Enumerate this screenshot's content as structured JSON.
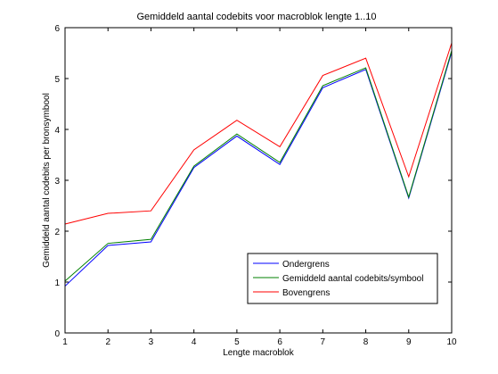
{
  "chart_data": {
    "type": "line",
    "title": "Gemiddeld aantal codebits voor macroblok lengte 1..10",
    "xlabel": "Lengte macroblok",
    "ylabel": "Gemiddeld aantal codebits per bronsymbool",
    "xlim": [
      1,
      10
    ],
    "ylim": [
      0,
      6
    ],
    "xticks": [
      1,
      2,
      3,
      4,
      5,
      6,
      7,
      8,
      9,
      10
    ],
    "yticks": [
      0,
      1,
      2,
      3,
      4,
      5,
      6
    ],
    "x": [
      1,
      2,
      3,
      4,
      5,
      6,
      7,
      8,
      9,
      10
    ],
    "series": [
      {
        "name": "Ondergrens",
        "color": "#0000ff",
        "values": [
          0.92,
          1.72,
          1.79,
          3.25,
          3.87,
          3.31,
          4.82,
          5.18,
          2.65,
          5.52
        ]
      },
      {
        "name": "Gemiddeld aantal codebits/symbool",
        "color": "#008000",
        "values": [
          1.02,
          1.76,
          1.84,
          3.28,
          3.91,
          3.35,
          4.86,
          5.21,
          2.67,
          5.55
        ]
      },
      {
        "name": "Bovengrens",
        "color": "#ff0000",
        "values": [
          2.14,
          2.35,
          2.4,
          3.6,
          4.18,
          3.66,
          5.06,
          5.4,
          3.07,
          5.7
        ]
      }
    ],
    "legend_position": "lower-right"
  }
}
